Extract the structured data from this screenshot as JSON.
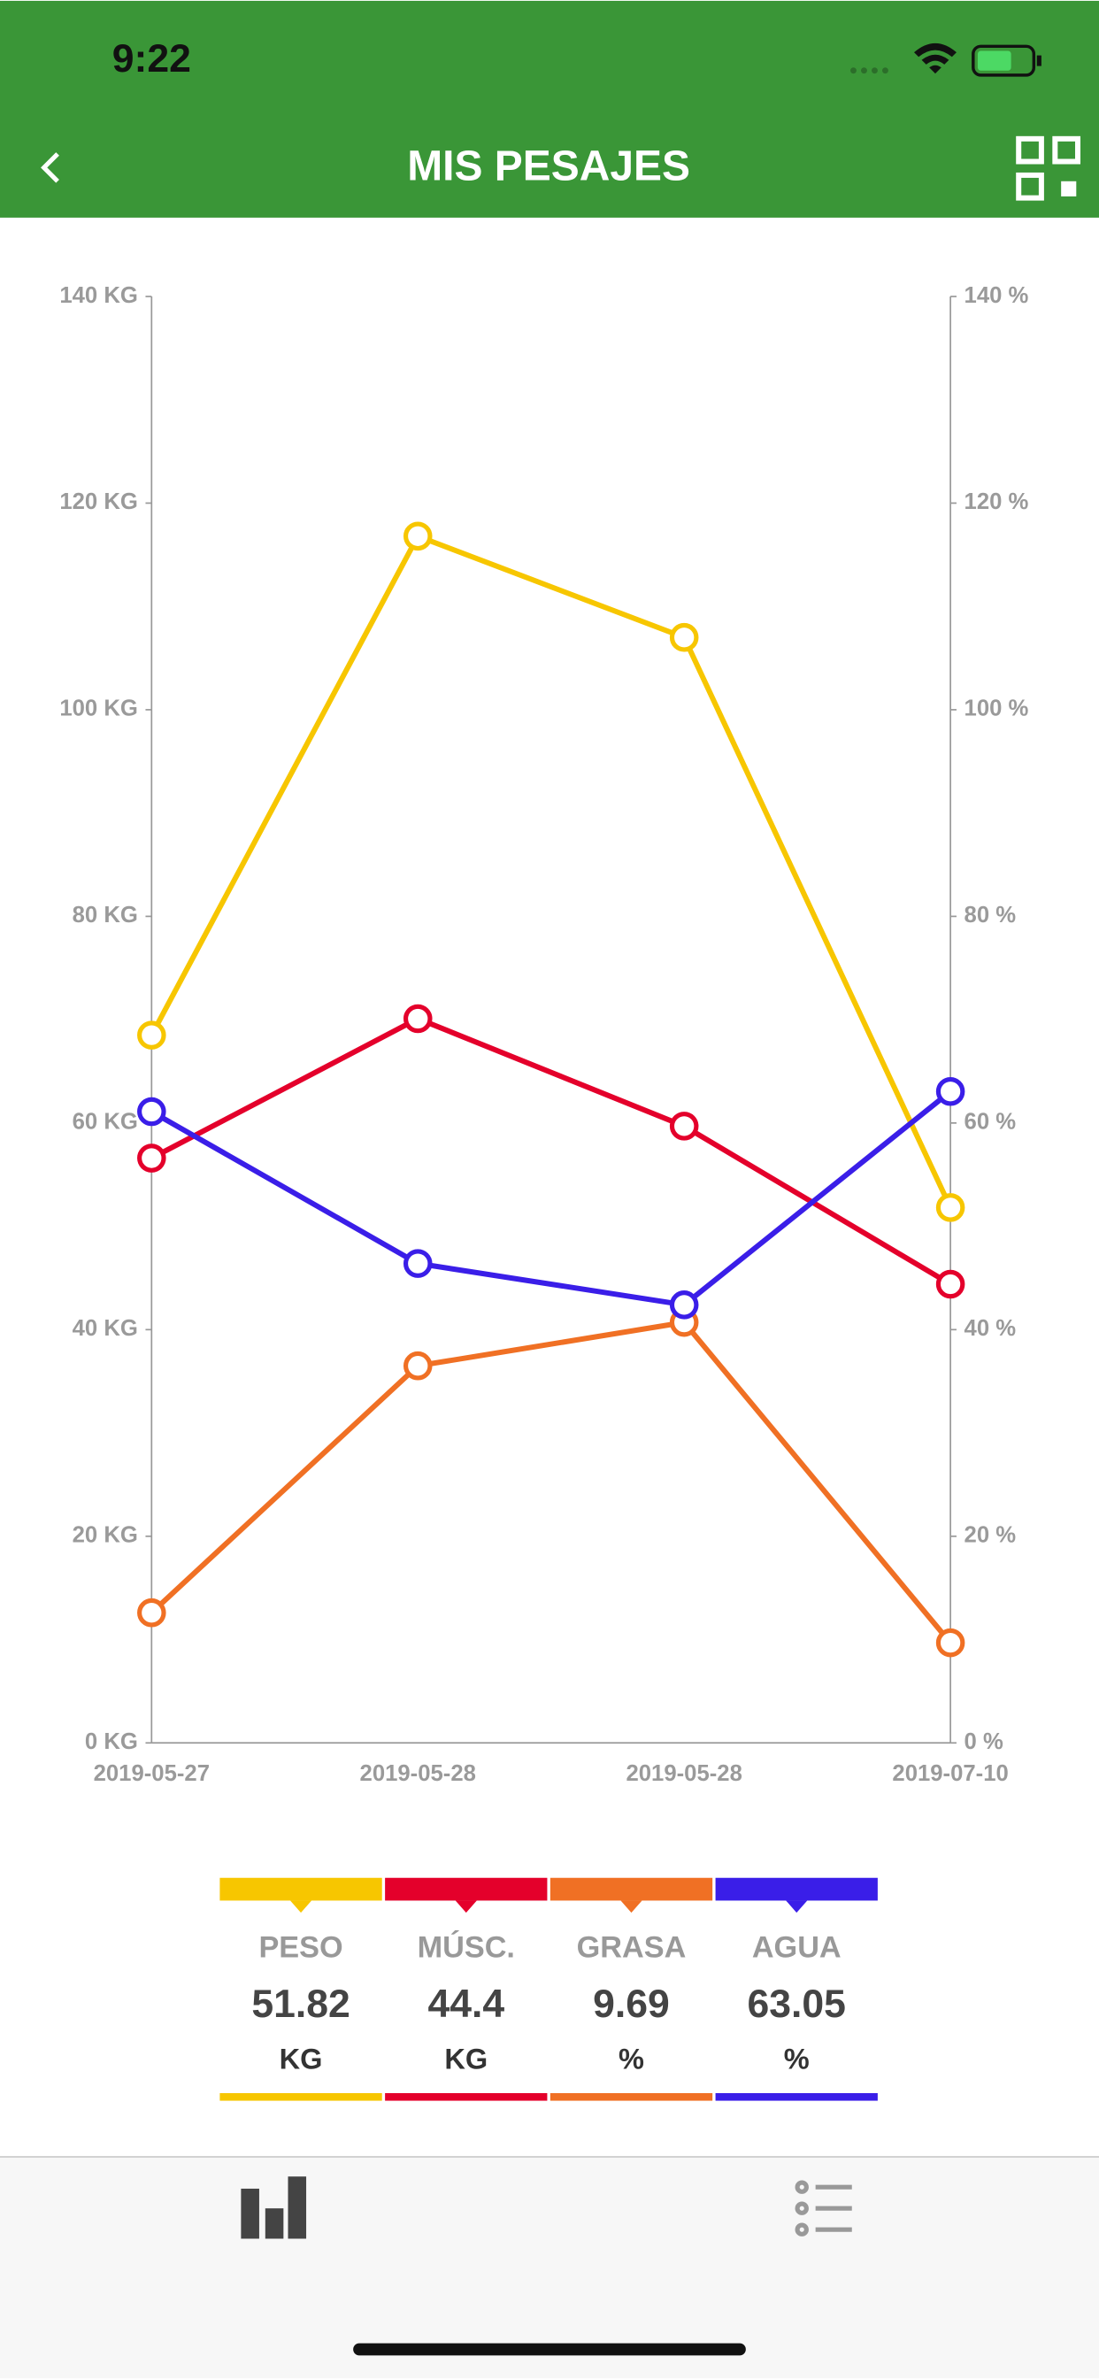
{
  "status_bar": {
    "time": "9:22"
  },
  "header": {
    "title": "MIS PESAJES"
  },
  "chart_data": {
    "type": "line",
    "categories": [
      "2019-05-27",
      "2019-05-28",
      "2019-05-28",
      "2019-07-10"
    ],
    "ylim": [
      0,
      140
    ],
    "yticks": [
      {
        "value": 0,
        "label": "0 KG"
      },
      {
        "value": 20,
        "label": "20 KG"
      },
      {
        "value": 40,
        "label": "40 KG"
      },
      {
        "value": 60,
        "label": "60 KG"
      },
      {
        "value": 80,
        "label": "80 KG"
      },
      {
        "value": 100,
        "label": "100 KG"
      },
      {
        "value": 120,
        "label": "120 KG"
      },
      {
        "value": 140,
        "label": "140 KG"
      }
    ],
    "y2lim": [
      0,
      140
    ],
    "y2ticks": [
      {
        "value": 0,
        "label": "0 %"
      },
      {
        "value": 20,
        "label": "20 %"
      },
      {
        "value": 40,
        "label": "40 %"
      },
      {
        "value": 60,
        "label": "60 %"
      },
      {
        "value": 80,
        "label": "80 %"
      },
      {
        "value": 100,
        "label": "100 %"
      },
      {
        "value": 120,
        "label": "120 %"
      },
      {
        "value": 140,
        "label": "140 %"
      }
    ],
    "grid": false,
    "series": [
      {
        "name": "PESO",
        "unit": "KG",
        "color": "#f7c600",
        "values": [
          68.5,
          116.8,
          107,
          51.82
        ]
      },
      {
        "name": "MÚSC.",
        "unit": "KG",
        "color": "#e4002b",
        "values": [
          56.6,
          70.1,
          59.7,
          44.4
        ]
      },
      {
        "name": "GRASA",
        "unit": "%",
        "color": "#f07024",
        "values": [
          12.6,
          36.5,
          40.7,
          9.69
        ]
      },
      {
        "name": "AGUA",
        "unit": "%",
        "color": "#3a1ee8",
        "values": [
          61.1,
          46.4,
          42.4,
          63.05
        ],
        "axis": "y2"
      }
    ]
  }
}
